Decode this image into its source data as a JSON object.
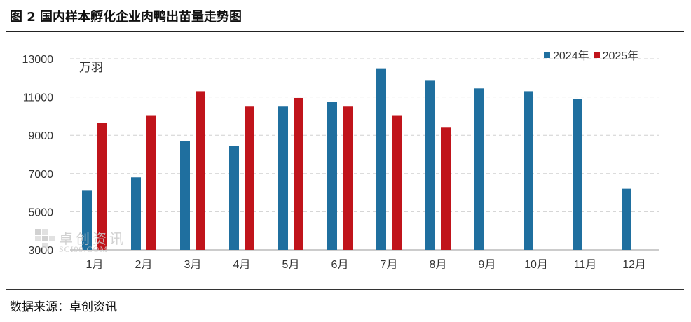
{
  "figure": {
    "title": "图 2  国内样本孵化企业肉鸭出苗量走势图",
    "unit": "万羽",
    "source": "数据来源：卓创资讯",
    "watermark_main": "卓创资讯",
    "watermark_sub": "SCI99.COM"
  },
  "colors": {
    "series_2024": "#1f6f9f",
    "series_2025": "#c0141b",
    "grid": "#d0d0d0",
    "axis": "#9a9a9a"
  },
  "chart_data": {
    "type": "bar",
    "categories": [
      "1月",
      "2月",
      "3月",
      "4月",
      "5月",
      "6月",
      "7月",
      "8月",
      "9月",
      "10月",
      "11月",
      "12月"
    ],
    "series": [
      {
        "name": "2024年",
        "values": [
          6100,
          6800,
          8700,
          8450,
          10500,
          10750,
          12500,
          11850,
          11450,
          11300,
          10900,
          6200
        ]
      },
      {
        "name": "2025年",
        "values": [
          9650,
          10050,
          11300,
          10500,
          10950,
          10500,
          10050,
          9400,
          null,
          null,
          null,
          null
        ]
      }
    ],
    "ylim": [
      3000,
      13000
    ],
    "yticks": [
      3000,
      5000,
      7000,
      9000,
      11000,
      13000
    ],
    "ylabel": "万羽",
    "xlabel": "",
    "grid": true,
    "legend_position": "top-right"
  }
}
